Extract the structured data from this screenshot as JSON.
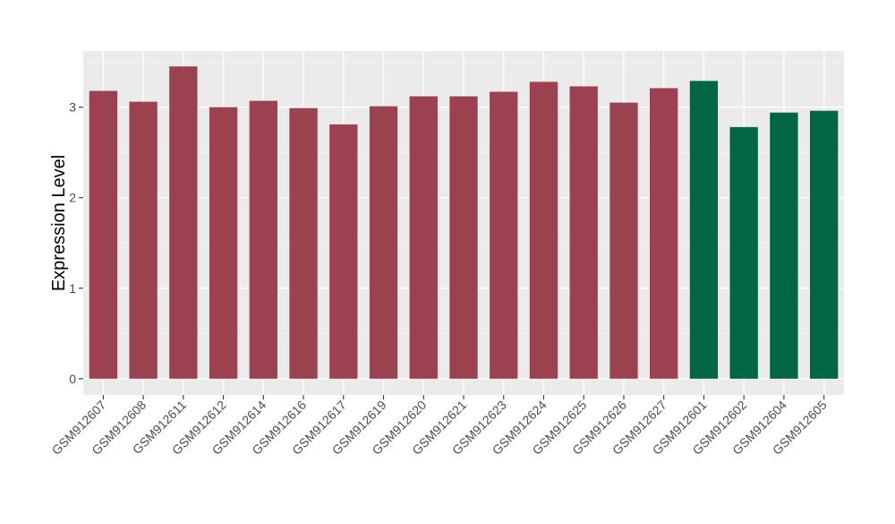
{
  "chart_data": {
    "type": "bar",
    "title": "",
    "xlabel": "",
    "ylabel": "Expression Level",
    "ylim": [
      -0.18,
      3.62
    ],
    "yticks": [
      0,
      1,
      2,
      3
    ],
    "grid": true,
    "legend": "none",
    "panel_background": "#ebebeb",
    "categories": [
      "GSM912607",
      "GSM912608",
      "GSM912611",
      "GSM912612",
      "GSM912614",
      "GSM912616",
      "GSM912617",
      "GSM912619",
      "GSM912620",
      "GSM912621",
      "GSM912623",
      "GSM912624",
      "GSM912625",
      "GSM912626",
      "GSM912627",
      "GSM912601",
      "GSM912602",
      "GSM912604",
      "GSM912605"
    ],
    "values": [
      3.18,
      3.06,
      3.45,
      3.0,
      3.07,
      2.99,
      2.81,
      3.01,
      3.12,
      3.12,
      3.17,
      3.28,
      3.23,
      3.05,
      3.21,
      3.29,
      2.78,
      2.94,
      2.96
    ],
    "bar_colors": [
      "#9b4150",
      "#9b4150",
      "#9b4150",
      "#9b4150",
      "#9b4150",
      "#9b4150",
      "#9b4150",
      "#9b4150",
      "#9b4150",
      "#9b4150",
      "#9b4150",
      "#9b4150",
      "#9b4150",
      "#9b4150",
      "#9b4150",
      "#006643",
      "#006643",
      "#006643",
      "#006643"
    ]
  }
}
